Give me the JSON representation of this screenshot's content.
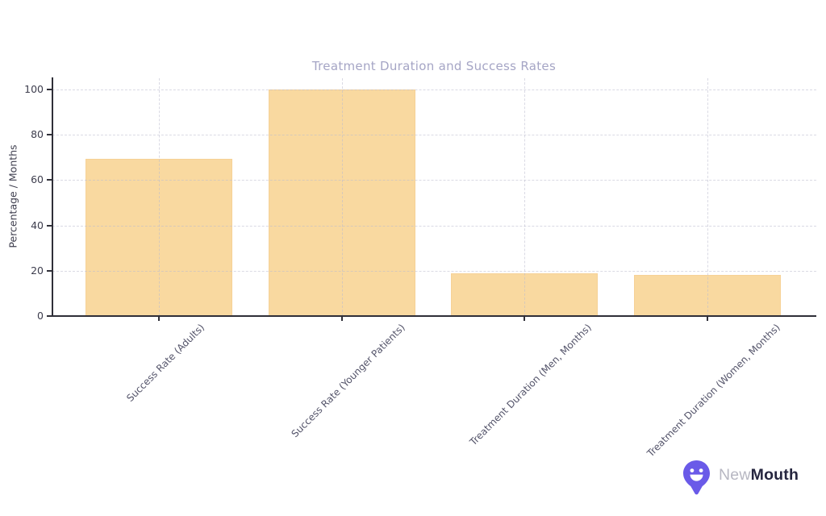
{
  "chart_data": {
    "type": "bar",
    "title": "Treatment Duration and Success Rates",
    "ylabel": "Percentage / Months",
    "xlabel": "",
    "categories": [
      "Success Rate (Adults)",
      "Success Rate (Younger Patients)",
      "Treatment Duration (Men, Months)",
      "Treatment Duration (Women, Months)"
    ],
    "values": [
      69.5,
      100,
      19,
      18
    ],
    "yticks": [
      0,
      20,
      40,
      60,
      80,
      100
    ],
    "ylim": [
      0,
      105
    ],
    "grid": "dashed, both x and y, drawn over bars",
    "legend": "none",
    "bar_color": "#f9d9a0",
    "title_color": "#a5a5c5",
    "axis_text_color": "#3d3d4d"
  },
  "watermark": {
    "brand_part1": "New",
    "brand_part2": "Mouth",
    "icon": "smiling-mouth-pin-icon",
    "icon_color": "#6a5ae8"
  }
}
